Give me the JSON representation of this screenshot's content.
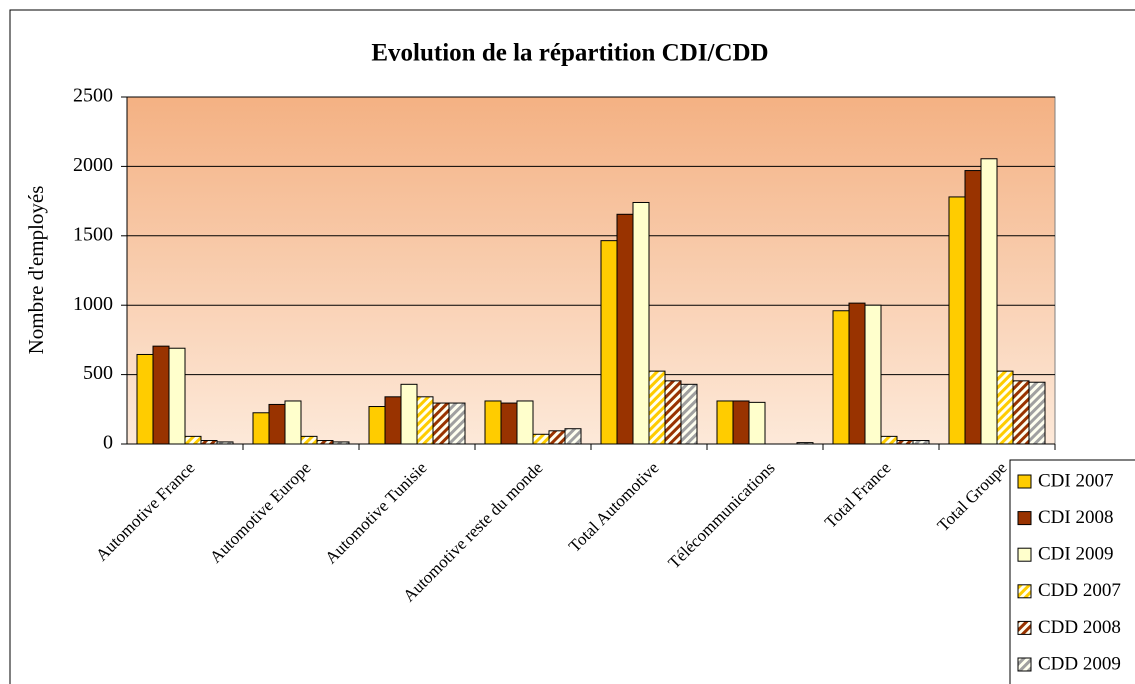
{
  "chart_data": {
    "type": "bar",
    "title": "Evolution de la répartition CDI/CDD",
    "y_label": "Nombre d'employés",
    "categories": [
      "Automotive France",
      "Automotive Europe",
      "Automotive Tunisie",
      "Automotive reste du monde",
      "Total Automotive",
      "Télécommunications",
      "Total France",
      "Total Groupe"
    ],
    "series": [
      {
        "name": "CDI 2007",
        "color": "#ffcc00",
        "hatched": false,
        "values": [
          645,
          225,
          270,
          310,
          1465,
          310,
          960,
          1780
        ]
      },
      {
        "name": "CDI 2008",
        "color": "#993300",
        "hatched": false,
        "values": [
          705,
          285,
          340,
          295,
          1655,
          310,
          1015,
          1970
        ]
      },
      {
        "name": "CDI 2009",
        "color": "#ffffcc",
        "hatched": false,
        "values": [
          690,
          310,
          430,
          310,
          1740,
          300,
          1000,
          2055
        ]
      },
      {
        "name": "CDD 2007",
        "color": "#ffcc00",
        "hatched": true,
        "values": [
          55,
          55,
          340,
          70,
          525,
          0,
          55,
          525
        ]
      },
      {
        "name": "CDD 2008",
        "color": "#993300",
        "hatched": true,
        "values": [
          25,
          25,
          295,
          95,
          455,
          0,
          25,
          455
        ]
      },
      {
        "name": "CDD 2009",
        "color": "#a0a0a0",
        "hatched": true,
        "values": [
          15,
          15,
          295,
          110,
          430,
          10,
          25,
          445
        ]
      }
    ],
    "ylim": [
      0,
      2500
    ],
    "yticks": [
      0,
      500,
      1000,
      1500,
      2000,
      2500
    ],
    "grid": true,
    "legend": "bottom-right"
  }
}
